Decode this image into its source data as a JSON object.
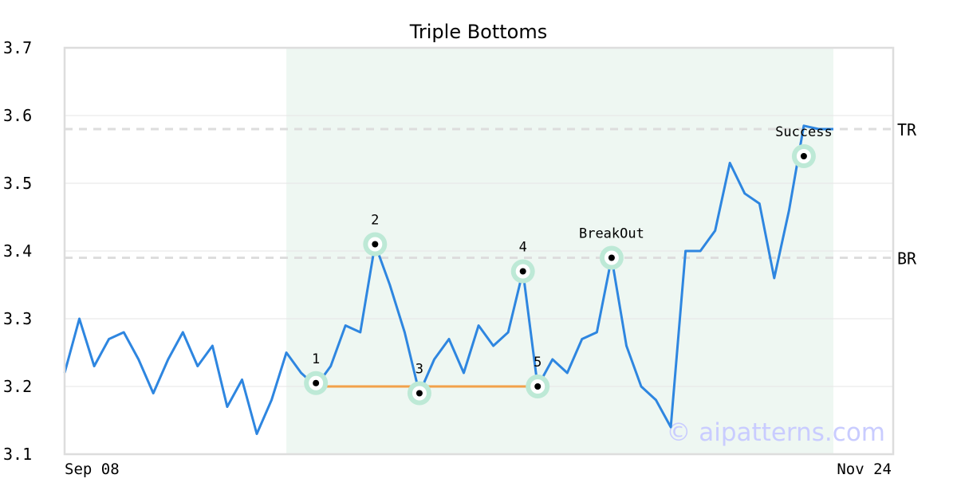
{
  "chart_data": {
    "type": "line",
    "title": "Triple Bottoms",
    "xlabel": "",
    "ylabel": "",
    "ylim": [
      3.1,
      3.7
    ],
    "yticks": [
      "3.1",
      "3.2",
      "3.3",
      "3.4",
      "3.5",
      "3.6",
      "3.7"
    ],
    "x_tick_labels": [
      "Sep 08",
      "Nov 24"
    ],
    "grid": "horizontal",
    "pattern_region": {
      "start_index": 15,
      "end_index": 52
    },
    "series": [
      {
        "color": "#2e86e0",
        "values": [
          3.22,
          3.3,
          3.23,
          3.27,
          3.28,
          3.24,
          3.19,
          3.24,
          3.28,
          3.23,
          3.26,
          3.17,
          3.21,
          3.13,
          3.18,
          3.25,
          3.22,
          3.2,
          3.23,
          3.29,
          3.28,
          3.41,
          3.35,
          3.28,
          3.19,
          3.24,
          3.27,
          3.22,
          3.29,
          3.26,
          3.28,
          3.37,
          3.2,
          3.24,
          3.22,
          3.27,
          3.28,
          3.39,
          3.26,
          3.2,
          3.18,
          3.14,
          3.4,
          3.4,
          3.43,
          3.53,
          3.485,
          3.47,
          3.36,
          3.46,
          3.585,
          3.58,
          3.58
        ]
      }
    ],
    "levels": [
      {
        "label": "TR",
        "value": 3.58
      },
      {
        "label": "BR",
        "value": 3.39
      }
    ],
    "support_line": {
      "from_index": 17,
      "to_index": 32,
      "value": 3.2,
      "color": "#f2a14a"
    },
    "annotations": [
      {
        "label": "1",
        "index": 17,
        "value": 3.205
      },
      {
        "label": "2",
        "index": 21,
        "value": 3.41
      },
      {
        "label": "3",
        "index": 24,
        "value": 3.19
      },
      {
        "label": "4",
        "index": 31,
        "value": 3.37
      },
      {
        "label": "5",
        "index": 32,
        "value": 3.2
      },
      {
        "label": "BreakOut",
        "index": 37,
        "value": 3.39
      },
      {
        "label": "Success",
        "index": 50,
        "value": 3.54
      }
    ],
    "watermark": "© aipatterns.com"
  }
}
